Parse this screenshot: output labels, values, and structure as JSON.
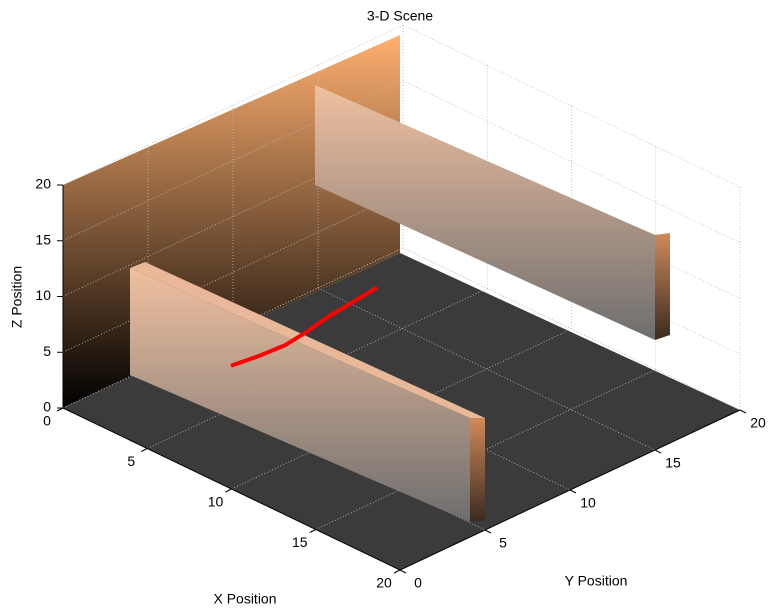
{
  "chart_data": {
    "type": "line3d",
    "title": "3-D Scene",
    "x_label": "X Position",
    "y_label": "Y Position",
    "z_label": "Z Position",
    "xlim": [
      0,
      20
    ],
    "ylim": [
      0,
      20
    ],
    "zlim": [
      0,
      20
    ],
    "xticks": [
      0,
      5,
      10,
      15,
      20
    ],
    "yticks": [
      0,
      5,
      10,
      15,
      20
    ],
    "zticks": [
      0,
      5,
      10,
      15,
      20
    ],
    "grid": true,
    "series": [
      {
        "color": "#ff0000",
        "x": [
          2.3,
          2.5,
          2.6,
          2.4,
          2.1,
          1.9,
          1.7
        ],
        "y": [
          7.6,
          9.0,
          10.5,
          12.0,
          13.5,
          15.2,
          16.8
        ],
        "z": [
          0,
          0,
          0,
          0,
          0,
          0,
          0
        ]
      }
    ]
  }
}
